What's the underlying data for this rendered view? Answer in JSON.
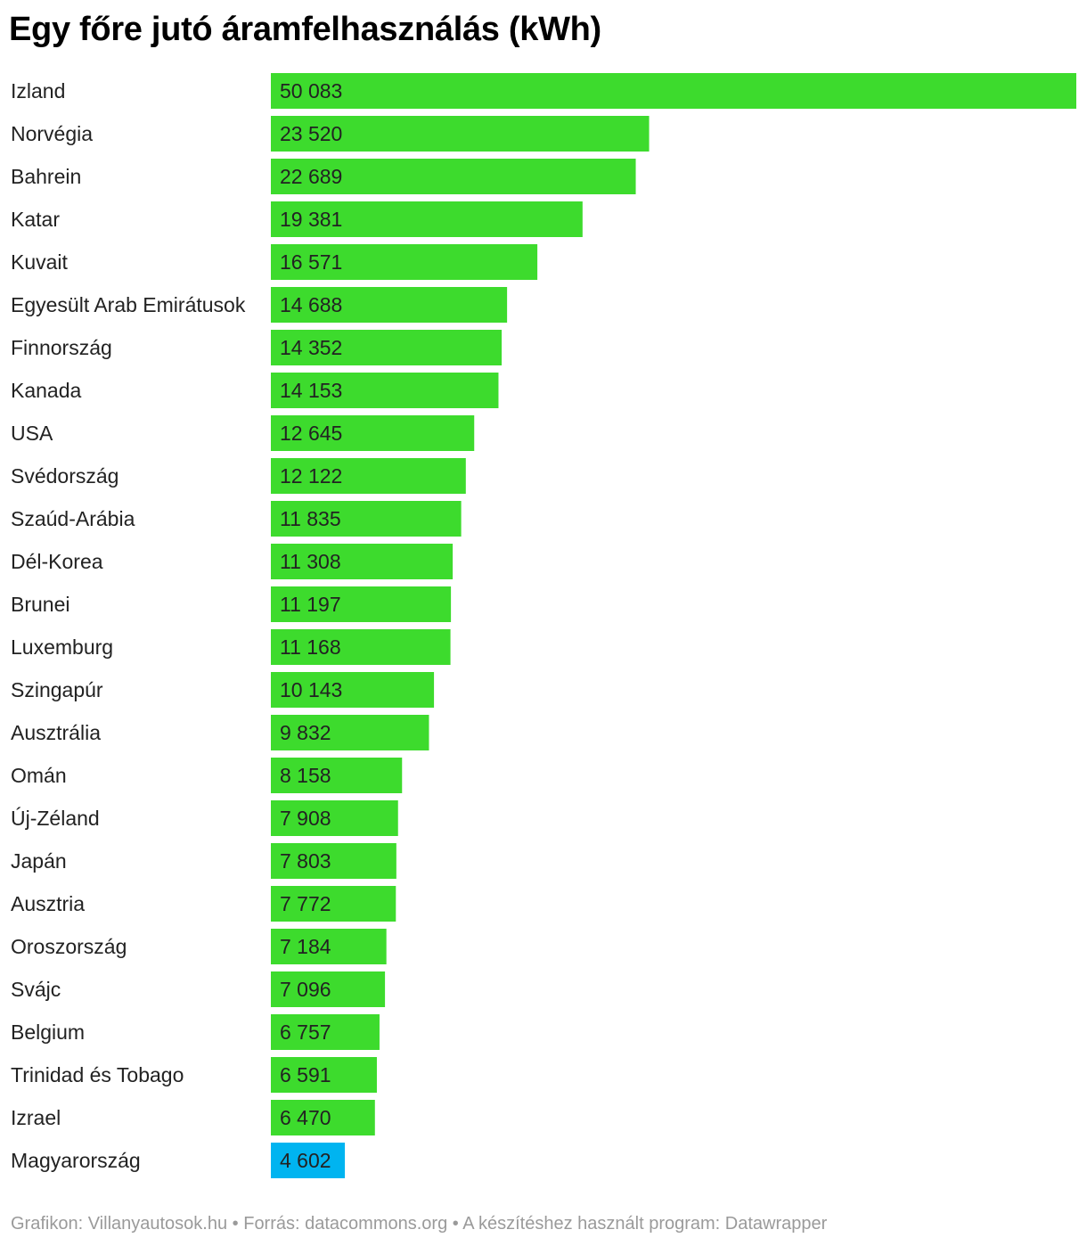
{
  "chart_data": {
    "type": "bar",
    "orientation": "horizontal",
    "title": "Egy főre jutó áramfelhasználás (kWh)",
    "categories": [
      "Izland",
      "Norvégia",
      "Bahrein",
      "Katar",
      "Kuvait",
      "Egyesült Arab Emirátusok",
      "Finnország",
      "Kanada",
      "USA",
      "Svédország",
      "Szaúd-Arábia",
      "Dél-Korea",
      "Brunei",
      "Luxemburg",
      "Szingapúr",
      "Ausztrália",
      "Omán",
      "Új-Zéland",
      "Japán",
      "Ausztria",
      "Oroszország",
      "Svájc",
      "Belgium",
      "Trinidad és Tobago",
      "Izrael",
      "Magyarország"
    ],
    "values": [
      50083,
      23520,
      22689,
      19381,
      16571,
      14688,
      14352,
      14153,
      12645,
      12122,
      11835,
      11308,
      11197,
      11168,
      10143,
      9832,
      8158,
      7908,
      7803,
      7772,
      7184,
      7096,
      6757,
      6591,
      6470,
      4602
    ],
    "value_labels": [
      "50 083",
      "23 520",
      "22 689",
      "19 381",
      "16 571",
      "14 688",
      "14 352",
      "14 153",
      "12 645",
      "12 122",
      "11 835",
      "11 308",
      "11 197",
      "11 168",
      "10 143",
      "9 832",
      "8 158",
      "7 908",
      "7 803",
      "7 772",
      "7 184",
      "7 096",
      "6 757",
      "6 591",
      "6 470",
      "4 602"
    ],
    "highlight_category": "Magyarország",
    "colors": {
      "bar": "#3ddb2d",
      "highlight": "#00b4f0",
      "label": "#222222"
    },
    "xlim": [
      0,
      50083
    ],
    "grid": false,
    "legend": "none"
  },
  "footer": "Grafikon: Villanyautosok.hu • Forrás: datacommons.org • A készítéshez használt program: Datawrapper"
}
